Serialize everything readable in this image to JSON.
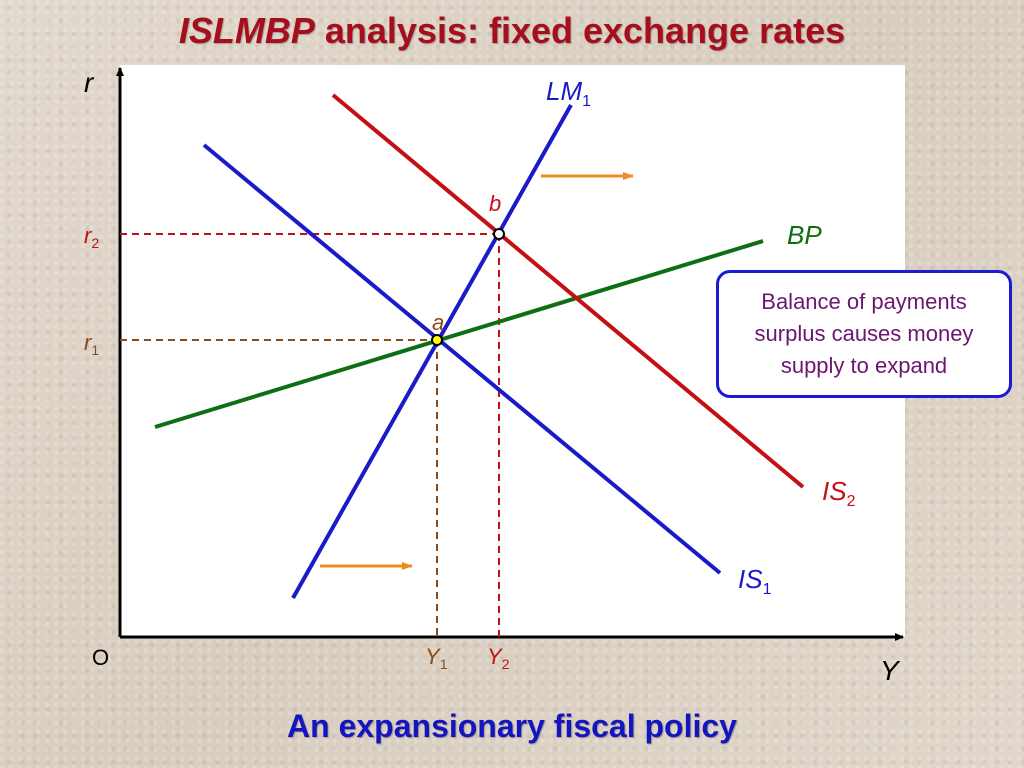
{
  "title": {
    "italic": "ISLMBP",
    "rest": " analysis: fixed exchange rates"
  },
  "subtitle": "An expansionary fiscal policy",
  "note": "Balance of payments surplus causes money supply to expand",
  "axes": {
    "y": "r",
    "x": "Y",
    "origin": "O"
  },
  "curves": {
    "lm1": {
      "main": "LM",
      "sub": "1"
    },
    "bp": {
      "main": "BP"
    },
    "is1": {
      "main": "IS",
      "sub": "1"
    },
    "is2": {
      "main": "IS",
      "sub": "2"
    }
  },
  "points": {
    "a": "a",
    "b": "b"
  },
  "levels": {
    "r1": {
      "main": "r",
      "sub": "1"
    },
    "r2": {
      "main": "r",
      "sub": "2"
    },
    "y1": {
      "main": "Y",
      "sub": "1"
    },
    "y2": {
      "main": "Y",
      "sub": "2"
    }
  },
  "colors": {
    "lm": "#1a1ac8",
    "is1": "#1a1ac8",
    "is2": "#c40f14",
    "bp": "#0d6e12",
    "arrow": "#f08c1e",
    "guide_red": "#c40f14",
    "guide_brown": "#8a4a1a",
    "title": "#a50f1d",
    "subtitle": "#1515c0",
    "note_text": "#6b1670",
    "note_border": "#1b1bd6"
  },
  "icons": {
    "shift_arrow": "right-arrow-icon"
  }
}
